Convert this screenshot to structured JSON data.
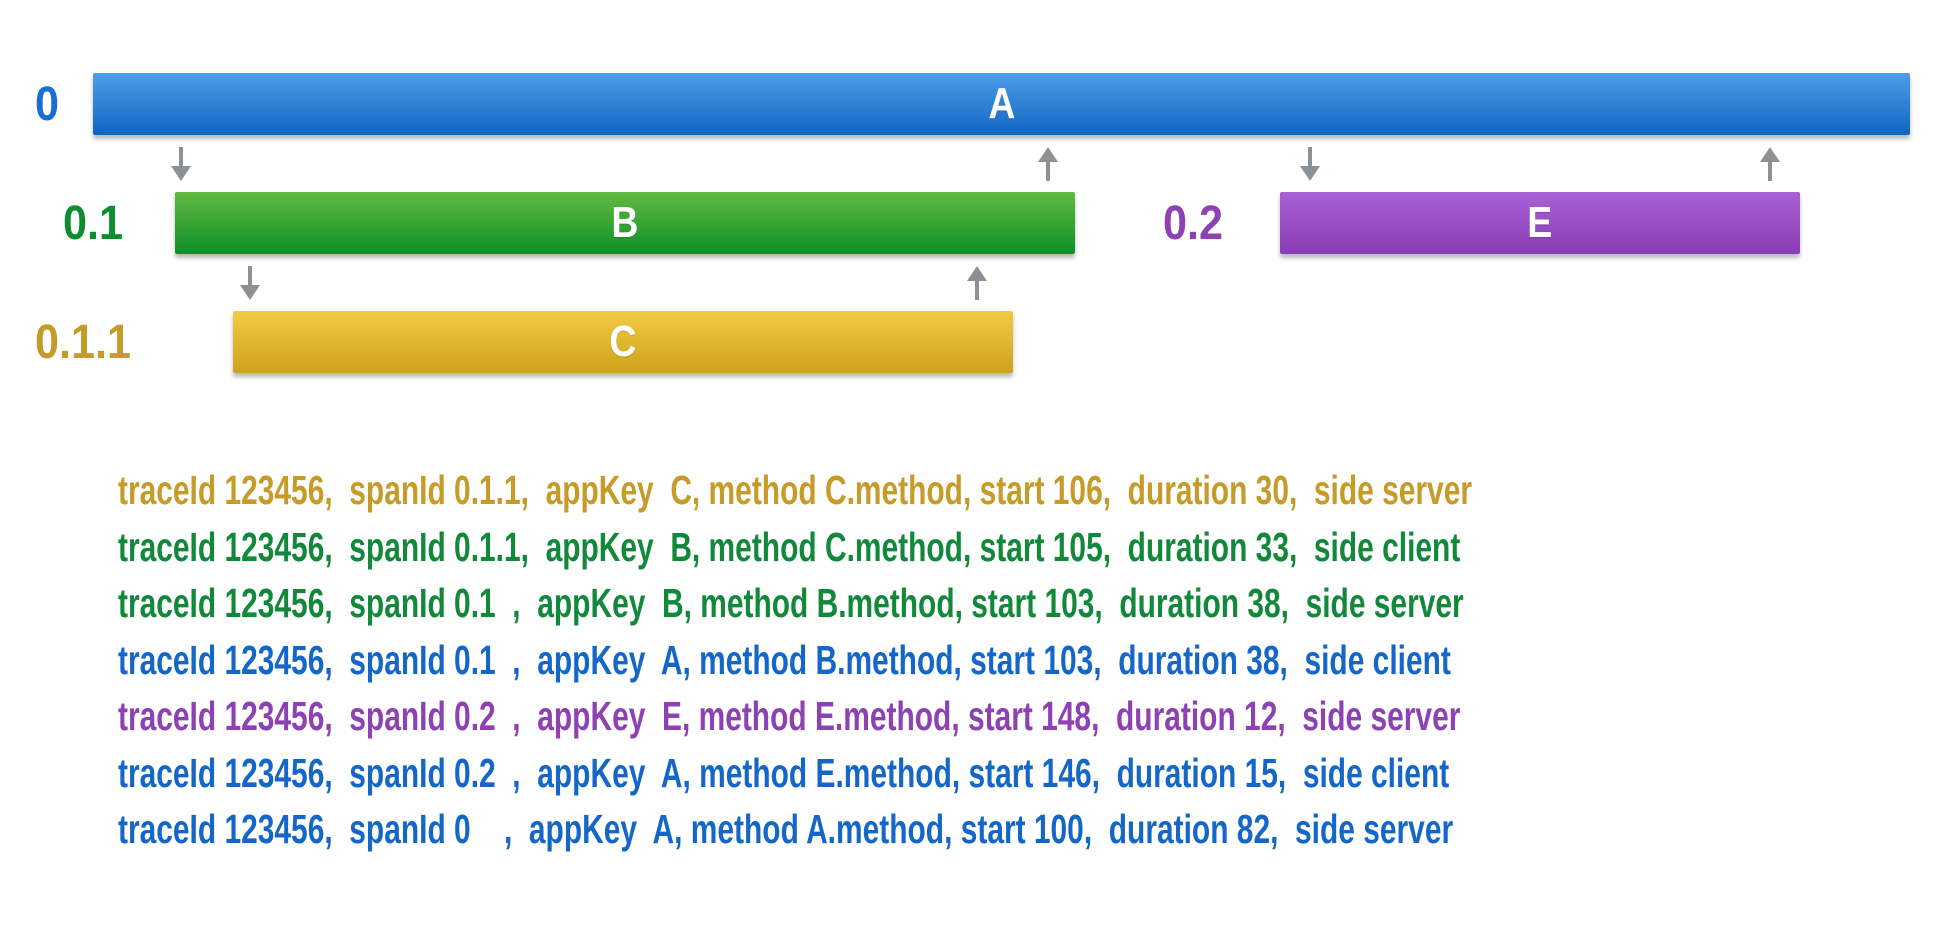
{
  "diagram": {
    "spans": {
      "a": {
        "span_id": "0",
        "bar_label": "A",
        "color": "#1165c2"
      },
      "b": {
        "span_id": "0.1",
        "bar_label": "B",
        "color": "#0f8f27"
      },
      "c": {
        "span_id": "0.1.1",
        "bar_label": "C",
        "color": "#cda21c"
      },
      "e": {
        "span_id": "0.2",
        "bar_label": "E",
        "color": "#8a3cb4"
      }
    },
    "arrows": [
      {
        "name": "call-a-to-b",
        "direction": "down"
      },
      {
        "name": "return-b-to-a",
        "direction": "up"
      },
      {
        "name": "call-a-to-e",
        "direction": "down"
      },
      {
        "name": "return-e-to-a",
        "direction": "up"
      },
      {
        "name": "call-b-to-c",
        "direction": "down"
      },
      {
        "name": "return-c-to-b",
        "direction": "up"
      }
    ],
    "arrow_color": "#8c9196"
  },
  "log_lines": [
    {
      "color": "gold",
      "text": "traceId 123456,  spanId 0.1.1,  appKey  C, method C.method, start 106,  duration 30,  side server"
    },
    {
      "color": "green",
      "text": "traceId 123456,  spanId 0.1.1,  appKey  B, method C.method, start 105,  duration 33,  side client"
    },
    {
      "color": "green",
      "text": "traceId 123456,  spanId 0.1  ,  appKey  B, method B.method, start 103,  duration 38,  side server"
    },
    {
      "color": "blue",
      "text": "traceId 123456,  spanId 0.1  ,  appKey  A, method B.method, start 103,  duration 38,  side client"
    },
    {
      "color": "purple",
      "text": "traceId 123456,  spanId 0.2  ,  appKey  E, method E.method, start 148,  duration 12,  side server"
    },
    {
      "color": "blue",
      "text": "traceId 123456,  spanId 0.2  ,  appKey  A, method E.method, start 146,  duration 15,  side client"
    },
    {
      "color": "blue",
      "text": "traceId 123456,  spanId 0    ,  appKey  A, method A.method, start 100,  duration 82,  side server"
    }
  ]
}
